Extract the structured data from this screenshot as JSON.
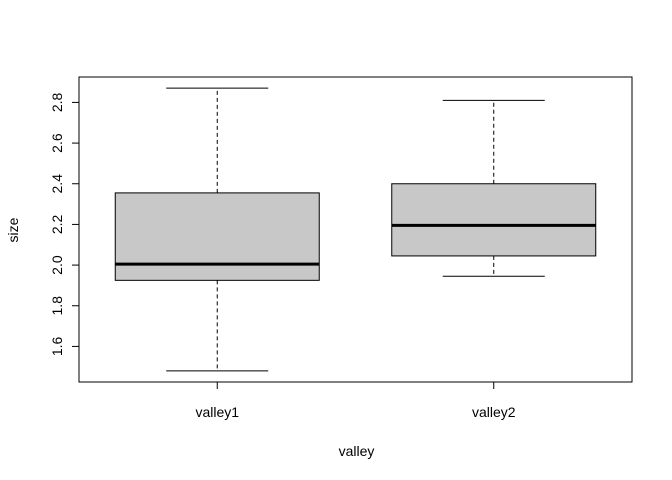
{
  "chart_data": {
    "type": "boxplot",
    "title": "",
    "xlabel": "valley",
    "ylabel": "size",
    "categories": [
      "valley1",
      "valley2"
    ],
    "boxes": [
      {
        "category": "valley1",
        "whisker_low": 1.48,
        "q1": 1.925,
        "median": 2.005,
        "q3": 2.355,
        "whisker_high": 2.87
      },
      {
        "category": "valley2",
        "whisker_low": 1.945,
        "q1": 2.045,
        "median": 2.195,
        "q3": 2.4,
        "whisker_high": 2.81
      }
    ],
    "y_ticks": [
      1.6,
      1.8,
      2.0,
      2.2,
      2.4,
      2.6,
      2.8
    ],
    "y_tick_labels": [
      "1.6",
      "1.8",
      "2.0",
      "2.2",
      "2.4",
      "2.6",
      "2.8"
    ],
    "ylim": [
      1.425,
      2.925
    ],
    "grid": false,
    "legend": "none",
    "colors": {
      "box_fill": "#c8c8c8",
      "stroke": "#000000"
    }
  }
}
